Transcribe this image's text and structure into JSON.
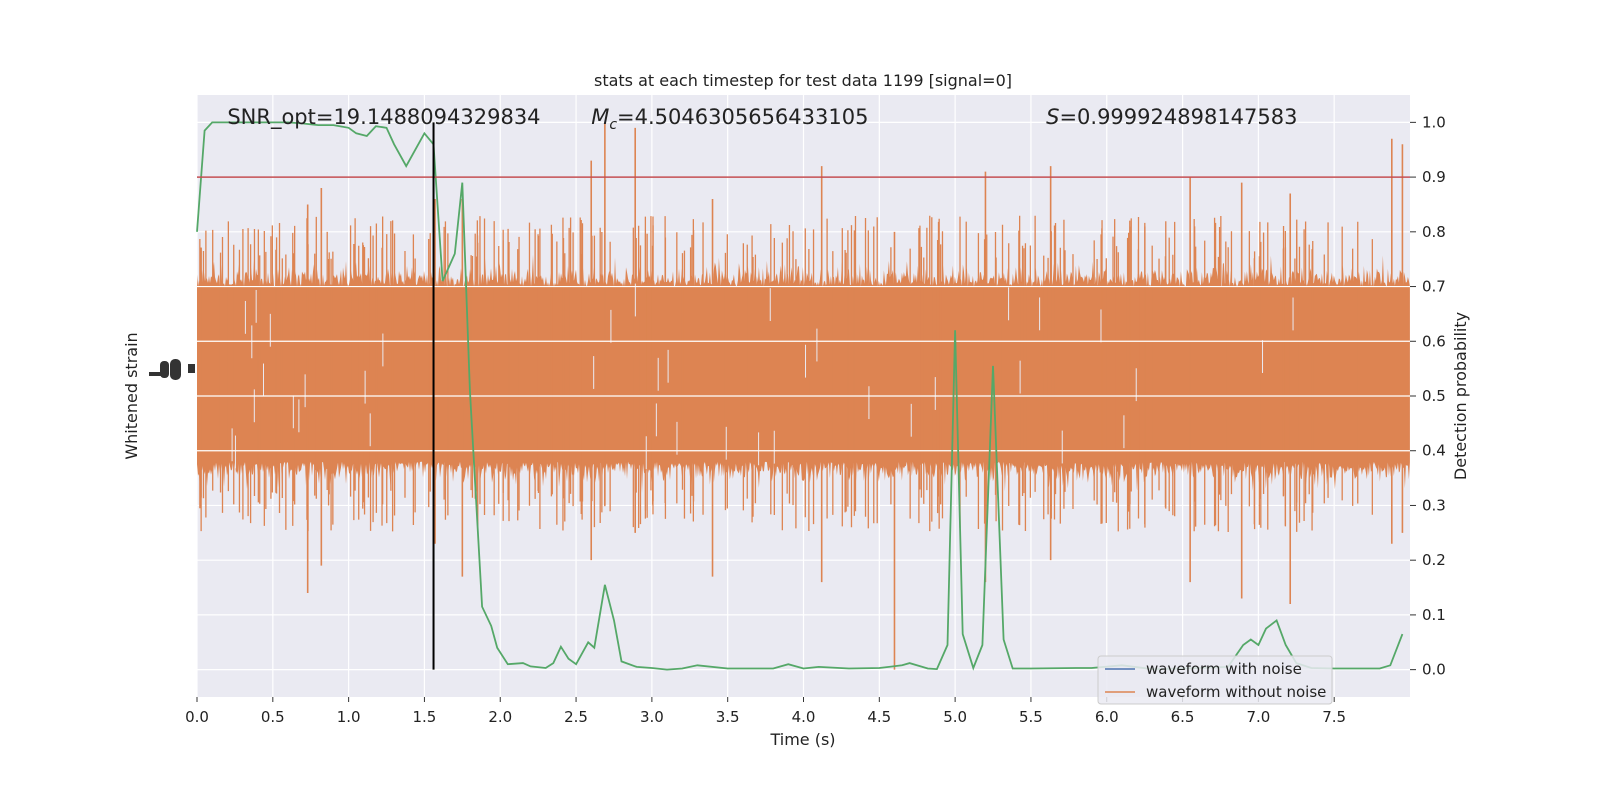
{
  "chart_data": {
    "type": "line",
    "title": "stats at each timestep for test data 1199 [signal=0]",
    "xlabel": "Time (s)",
    "ylabel_left": "Whitened strain",
    "ylabel_right": "Detection probability",
    "xlim": [
      0.0,
      8.0
    ],
    "ylim_right": [
      -0.05,
      1.05
    ],
    "x_ticks": [
      0.0,
      0.5,
      1.0,
      1.5,
      2.0,
      2.5,
      3.0,
      3.5,
      4.0,
      4.5,
      5.0,
      5.5,
      6.0,
      6.5,
      7.0,
      7.5
    ],
    "x_tick_labels": [
      "0.0",
      "0.5",
      "1.0",
      "1.5",
      "2.0",
      "2.5",
      "3.0",
      "3.5",
      "4.0",
      "4.5",
      "5.0",
      "5.5",
      "6.0",
      "6.5",
      "7.0",
      "7.5"
    ],
    "y_ticks_right": [
      0.0,
      0.1,
      0.2,
      0.3,
      0.4,
      0.5,
      0.6,
      0.7,
      0.8,
      0.9,
      1.0
    ],
    "y_tick_labels_right": [
      "0.0",
      "0.1",
      "0.2",
      "0.3",
      "0.4",
      "0.5",
      "0.6",
      "0.7",
      "0.8",
      "0.9",
      "1.0"
    ],
    "grid": true,
    "annotations": [
      {
        "text": "SNR_opt=19.1488094329834",
        "x": 0.2,
        "y": 1.013
      },
      {
        "text_italic": "M",
        "text_sub": "c",
        "text_rest": "=4.5046305656433105",
        "x": 2.6,
        "y": 1.013
      },
      {
        "text_italic": "S",
        "text_rest": "=0.999924898147583",
        "x": 5.6,
        "y": 1.013
      }
    ],
    "threshold": {
      "y": 0.9,
      "color": "#c44e52"
    },
    "marker_line": {
      "x": 1.56,
      "y_range": [
        0.0,
        1.0
      ],
      "color": "#000000"
    },
    "legend": {
      "location": "lower-right",
      "entries": [
        {
          "label": "waveform with noise",
          "color": "#4c72b0"
        },
        {
          "label": "waveform without noise",
          "color": "#dd8452"
        }
      ]
    },
    "noise_series": {
      "name": "waveform without noise",
      "color": "#dd8452",
      "center": 0.54,
      "core_half_width": 0.16,
      "typical_upper_max": 0.78,
      "typical_lower_min": 0.3,
      "notable_spikes": [
        {
          "x": 0.73,
          "top": 0.85,
          "bottom": 0.14
        },
        {
          "x": 0.82,
          "top": 0.88,
          "bottom": 0.19
        },
        {
          "x": 1.57,
          "top": 0.86,
          "bottom": 0.23
        },
        {
          "x": 1.75,
          "top": 0.86,
          "bottom": 0.17
        },
        {
          "x": 2.6,
          "top": 0.93,
          "bottom": 0.2
        },
        {
          "x": 2.69,
          "top": 1.0,
          "bottom": 0.3
        },
        {
          "x": 2.89,
          "top": 0.99,
          "bottom": 0.25
        },
        {
          "x": 3.4,
          "top": 0.86,
          "bottom": 0.17
        },
        {
          "x": 4.12,
          "top": 0.92,
          "bottom": 0.16
        },
        {
          "x": 4.6,
          "top": 0.8,
          "bottom": 0.0
        },
        {
          "x": 5.2,
          "top": 0.91,
          "bottom": 0.16
        },
        {
          "x": 5.63,
          "top": 0.92,
          "bottom": 0.2
        },
        {
          "x": 6.55,
          "top": 0.9,
          "bottom": 0.16
        },
        {
          "x": 6.89,
          "top": 0.89,
          "bottom": 0.13
        },
        {
          "x": 7.21,
          "top": 0.87,
          "bottom": 0.12
        },
        {
          "x": 7.88,
          "top": 0.97,
          "bottom": 0.23
        },
        {
          "x": 7.95,
          "top": 0.96,
          "bottom": 0.25
        }
      ]
    },
    "series": [
      {
        "name": "detection probability",
        "color": "#55a868",
        "x": [
          0.0,
          0.05,
          0.1,
          0.15,
          0.3,
          0.5,
          0.6,
          0.7,
          0.8,
          0.9,
          1.0,
          1.05,
          1.12,
          1.18,
          1.25,
          1.3,
          1.38,
          1.5,
          1.56,
          1.62,
          1.7,
          1.75,
          1.8,
          1.88,
          1.94,
          1.98,
          2.05,
          2.15,
          2.2,
          2.3,
          2.35,
          2.4,
          2.45,
          2.5,
          2.58,
          2.62,
          2.69,
          2.75,
          2.8,
          2.9,
          3.0,
          3.1,
          3.2,
          3.3,
          3.5,
          3.6,
          3.8,
          3.9,
          4.0,
          4.1,
          4.3,
          4.5,
          4.65,
          4.7,
          4.82,
          4.88,
          4.95,
          5.0,
          5.05,
          5.12,
          5.18,
          5.25,
          5.32,
          5.38,
          5.5,
          5.8,
          5.9,
          6.1,
          6.3,
          6.5,
          6.8,
          6.9,
          6.95,
          7.0,
          7.05,
          7.12,
          7.18,
          7.25,
          7.35,
          7.5,
          7.7,
          7.8,
          7.87,
          7.95
        ],
        "y": [
          0.8,
          0.985,
          1.0,
          1.0,
          1.0,
          1.0,
          1.0,
          0.998,
          0.995,
          0.995,
          0.99,
          0.98,
          0.975,
          0.993,
          0.99,
          0.96,
          0.92,
          0.98,
          0.96,
          0.71,
          0.76,
          0.89,
          0.51,
          0.115,
          0.08,
          0.04,
          0.01,
          0.012,
          0.006,
          0.003,
          0.012,
          0.042,
          0.02,
          0.01,
          0.05,
          0.04,
          0.155,
          0.09,
          0.015,
          0.005,
          0.003,
          0.0,
          0.002,
          0.008,
          0.002,
          0.002,
          0.002,
          0.01,
          0.002,
          0.005,
          0.002,
          0.003,
          0.008,
          0.012,
          0.002,
          0.001,
          0.045,
          0.62,
          0.065,
          0.003,
          0.045,
          0.555,
          0.055,
          0.002,
          0.002,
          0.003,
          0.003,
          0.008,
          0.001,
          0.002,
          0.005,
          0.045,
          0.055,
          0.045,
          0.075,
          0.09,
          0.045,
          0.012,
          0.003,
          0.002,
          0.002,
          0.002,
          0.008,
          0.065
        ]
      }
    ],
    "left_axis_ticks_illegible": true
  }
}
